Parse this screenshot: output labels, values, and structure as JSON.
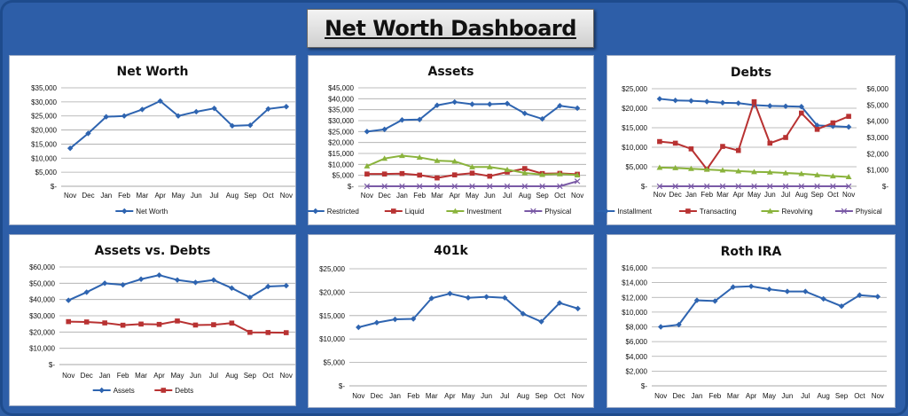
{
  "dashboard": {
    "title": "Net Worth Dashboard"
  },
  "months": [
    "Nov",
    "Dec",
    "Jan",
    "Feb",
    "Mar",
    "Apr",
    "May",
    "Jun",
    "Jul",
    "Aug",
    "Sep",
    "Oct",
    "Nov"
  ],
  "chart_data": [
    {
      "id": "net-worth",
      "type": "line",
      "title": "Net Worth",
      "ylim": [
        0,
        35000
      ],
      "yticks": [
        "$-",
        "$5,000",
        "$10,000",
        "$15,000",
        "$20,000",
        "$25,000",
        "$30,000",
        "$35,000"
      ],
      "series": [
        {
          "name": "Net Worth",
          "color": "#2e64b0",
          "marker": "diamond",
          "values": [
            13500,
            18800,
            24700,
            25000,
            27300,
            30300,
            25000,
            26500,
            27700,
            21500,
            21700,
            27500,
            28300
          ]
        }
      ]
    },
    {
      "id": "assets",
      "type": "line",
      "title": "Assets",
      "ylim": [
        0,
        45000
      ],
      "yticks": [
        "$-",
        "$5,000",
        "$10,000",
        "$15,000",
        "$20,000",
        "$25,000",
        "$30,000",
        "$35,000",
        "$40,000",
        "$45,000"
      ],
      "series": [
        {
          "name": "Restricted",
          "color": "#2e64b0",
          "marker": "diamond",
          "values": [
            25000,
            26000,
            30300,
            30500,
            37000,
            38500,
            37500,
            37500,
            37800,
            33300,
            30800,
            36800,
            35700
          ]
        },
        {
          "name": "Liquid",
          "color": "#b83232",
          "marker": "square",
          "values": [
            5600,
            5600,
            5800,
            5100,
            3800,
            5200,
            6000,
            4600,
            6500,
            8100,
            5800,
            5900,
            5500
          ]
        },
        {
          "name": "Investment",
          "color": "#8ab33c",
          "marker": "triangle",
          "values": [
            9200,
            12700,
            14000,
            13200,
            11700,
            11400,
            8800,
            8800,
            7600,
            6100,
            5300,
            5600,
            5100
          ]
        },
        {
          "name": "Physical",
          "color": "#7a5aa6",
          "marker": "x",
          "values": [
            0,
            0,
            0,
            0,
            0,
            0,
            0,
            0,
            0,
            0,
            0,
            0,
            2300
          ]
        }
      ]
    },
    {
      "id": "debts",
      "type": "line",
      "title": "Debts",
      "ylim": [
        0,
        25000
      ],
      "yticks": [
        "$-",
        "$5,000",
        "$10,000",
        "$15,000",
        "$20,000",
        "$25,000"
      ],
      "y2lim": [
        0,
        6000
      ],
      "y2ticks": [
        "$-",
        "$1,000",
        "$2,000",
        "$3,000",
        "$4,000",
        "$5,000",
        "$6,000"
      ],
      "series": [
        {
          "name": "Installment",
          "axis": "left",
          "color": "#2e64b0",
          "marker": "diamond",
          "values": [
            22400,
            22000,
            21900,
            21700,
            21400,
            21300,
            20800,
            20600,
            20500,
            20400,
            15600,
            15400,
            15200
          ]
        },
        {
          "name": "Transacting",
          "axis": "right",
          "color": "#b83232",
          "marker": "square",
          "values": [
            2750,
            2650,
            2300,
            1050,
            2450,
            2200,
            5200,
            2650,
            3000,
            4500,
            3500,
            3900,
            4300
          ]
        },
        {
          "name": "Revolving",
          "axis": "left",
          "color": "#8ab33c",
          "marker": "triangle",
          "values": [
            4800,
            4700,
            4500,
            4300,
            4100,
            3900,
            3700,
            3600,
            3400,
            3200,
            2900,
            2600,
            2400
          ]
        },
        {
          "name": "Physical",
          "axis": "left",
          "color": "#7a5aa6",
          "marker": "x",
          "values": [
            0,
            0,
            0,
            0,
            0,
            0,
            0,
            0,
            0,
            0,
            0,
            0,
            0
          ]
        }
      ]
    },
    {
      "id": "assets-vs-debts",
      "type": "line",
      "title": "Assets vs. Debts",
      "ylim": [
        0,
        60000
      ],
      "yticks": [
        "$-",
        "$10,000",
        "$20,000",
        "$30,000",
        "$40,000",
        "$50,000",
        "$60,000"
      ],
      "series": [
        {
          "name": "Assets",
          "color": "#2e64b0",
          "marker": "diamond",
          "values": [
            39500,
            44500,
            50000,
            49000,
            52500,
            55000,
            52000,
            50500,
            52000,
            47000,
            41300,
            48000,
            48500
          ]
        },
        {
          "name": "Debts",
          "color": "#b83232",
          "marker": "square",
          "values": [
            26400,
            26200,
            25600,
            24200,
            24900,
            24700,
            26800,
            24300,
            24500,
            25500,
            19800,
            19700,
            19600
          ]
        }
      ]
    },
    {
      "id": "401k",
      "type": "line",
      "title": "401k",
      "ylim": [
        0,
        25000
      ],
      "yticks": [
        "$-",
        "$5,000",
        "$10,000",
        "$15,000",
        "$20,000",
        "$25,000"
      ],
      "series": [
        {
          "name": "401k",
          "color": "#2e64b0",
          "marker": "diamond",
          "values": [
            12500,
            13500,
            14200,
            14300,
            18700,
            19700,
            18800,
            19000,
            18800,
            15400,
            13700,
            17700,
            16500
          ]
        }
      ]
    },
    {
      "id": "roth-ira",
      "type": "line",
      "title": "Roth IRA",
      "ylim": [
        0,
        16000
      ],
      "yticks": [
        "$-",
        "$2,000",
        "$4,000",
        "$6,000",
        "$8,000",
        "$10,000",
        "$12,000",
        "$14,000",
        "$16,000"
      ],
      "series": [
        {
          "name": "Roth IRA",
          "color": "#2e64b0",
          "marker": "diamond",
          "values": [
            8000,
            8300,
            11600,
            11500,
            13400,
            13500,
            13100,
            12800,
            12800,
            11800,
            10800,
            12300,
            12100
          ]
        }
      ]
    }
  ]
}
